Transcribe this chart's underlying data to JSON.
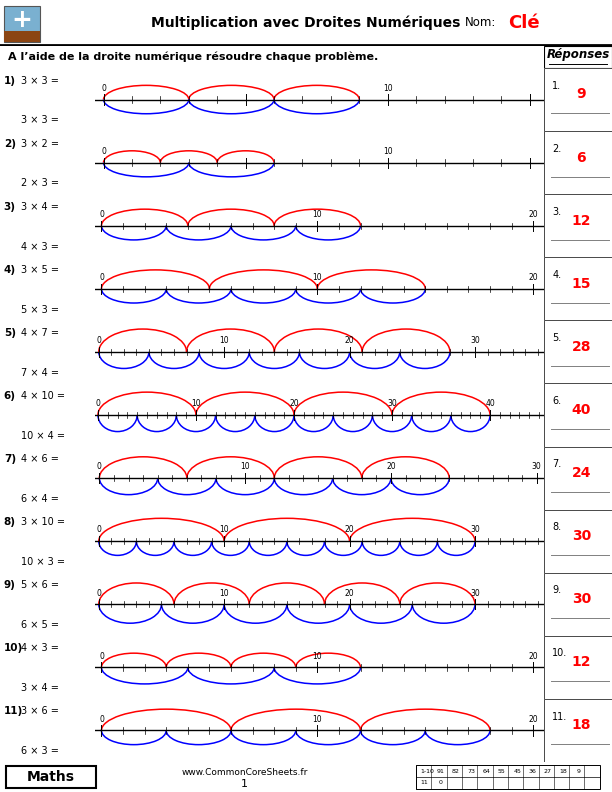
{
  "title": "Multiplication avec Droites Numériques",
  "nom_label": "Nom:",
  "nom_value": "Clé",
  "instruction": "A l’aide de la droite numérique résoudre chaque problème.",
  "responses_label": "Réponses",
  "answers": [
    9,
    6,
    12,
    15,
    28,
    40,
    24,
    30,
    30,
    12,
    18
  ],
  "problems": [
    {
      "num": 1,
      "top": "3 × 3 =",
      "bot": "3 × 3 =",
      "red_n": 3,
      "red_step": 3,
      "blue_n": 3,
      "blue_step": 3,
      "axis_max": 15,
      "minor": 1,
      "major_ticks": [
        0,
        10
      ],
      "shown_ticks": [
        0,
        10
      ]
    },
    {
      "num": 2,
      "top": "3 × 2 =",
      "bot": "2 × 3 =",
      "red_n": 3,
      "red_step": 2,
      "blue_n": 2,
      "blue_step": 3,
      "axis_max": 15,
      "minor": 1,
      "major_ticks": [
        0,
        10
      ],
      "shown_ticks": [
        0,
        10
      ]
    },
    {
      "num": 3,
      "top": "3 × 4 =",
      "bot": "4 × 3 =",
      "red_n": 3,
      "red_step": 4,
      "blue_n": 4,
      "blue_step": 3,
      "axis_max": 20,
      "minor": 1,
      "major_ticks": [
        0,
        10,
        20
      ],
      "shown_ticks": [
        0,
        10,
        20
      ]
    },
    {
      "num": 4,
      "top": "3 × 5 =",
      "bot": "5 × 3 =",
      "red_n": 3,
      "red_step": 5,
      "blue_n": 5,
      "blue_step": 3,
      "axis_max": 20,
      "minor": 1,
      "major_ticks": [
        0,
        10,
        20
      ],
      "shown_ticks": [
        0,
        10,
        20
      ]
    },
    {
      "num": 5,
      "top": "4 × 7 =",
      "bot": "7 × 4 =",
      "red_n": 4,
      "red_step": 7,
      "blue_n": 7,
      "blue_step": 4,
      "axis_max": 35,
      "minor": 1,
      "major_ticks": [
        0,
        10,
        20,
        30
      ],
      "shown_ticks": [
        0,
        10,
        20,
        30
      ]
    },
    {
      "num": 6,
      "top": "4 × 10 =",
      "bot": "10 × 4 =",
      "red_n": 4,
      "red_step": 10,
      "blue_n": 10,
      "blue_step": 4,
      "axis_max": 45,
      "minor": 1,
      "major_ticks": [
        0,
        10,
        20,
        30,
        40
      ],
      "shown_ticks": [
        0,
        10,
        20,
        30,
        40
      ]
    },
    {
      "num": 7,
      "top": "4 × 6 =",
      "bot": "6 × 4 =",
      "red_n": 4,
      "red_step": 6,
      "blue_n": 6,
      "blue_step": 4,
      "axis_max": 30,
      "minor": 1,
      "major_ticks": [
        0,
        10,
        20,
        30
      ],
      "shown_ticks": [
        0,
        10,
        20,
        30
      ]
    },
    {
      "num": 8,
      "top": "3 × 10 =",
      "bot": "10 × 3 =",
      "red_n": 3,
      "red_step": 10,
      "blue_n": 10,
      "blue_step": 3,
      "axis_max": 35,
      "minor": 1,
      "major_ticks": [
        0,
        10,
        20,
        30
      ],
      "shown_ticks": [
        0,
        10,
        20,
        30
      ]
    },
    {
      "num": 9,
      "top": "5 × 6 =",
      "bot": "6 × 5 =",
      "red_n": 5,
      "red_step": 6,
      "blue_n": 6,
      "blue_step": 5,
      "axis_max": 35,
      "minor": 1,
      "major_ticks": [
        0,
        10,
        20,
        30
      ],
      "shown_ticks": [
        0,
        10,
        20,
        30
      ]
    },
    {
      "num": 10,
      "top": "4 × 3 =",
      "bot": "3 × 4 =",
      "red_n": 4,
      "red_step": 3,
      "blue_n": 3,
      "blue_step": 4,
      "axis_max": 20,
      "minor": 1,
      "major_ticks": [
        0,
        10,
        20
      ],
      "shown_ticks": [
        0,
        10,
        20
      ]
    },
    {
      "num": 11,
      "top": "3 × 6 =",
      "bot": "6 × 3 =",
      "red_n": 3,
      "red_step": 6,
      "blue_n": 6,
      "blue_step": 3,
      "axis_max": 20,
      "minor": 1,
      "major_ticks": [
        0,
        10,
        20
      ],
      "shown_ticks": [
        0,
        10,
        20
      ]
    }
  ],
  "footer_left": "Maths",
  "footer_url": "www.CommonCoreSheets.fr",
  "footer_page": "1",
  "bg_color": "#ffffff",
  "red_color": "#ff0000",
  "blue_color": "#0000cc",
  "answer_color": "#ff0000",
  "header_bg": "#e0e0e0",
  "plus_blue": "#7ab0d0",
  "plus_brown": "#8B4513"
}
